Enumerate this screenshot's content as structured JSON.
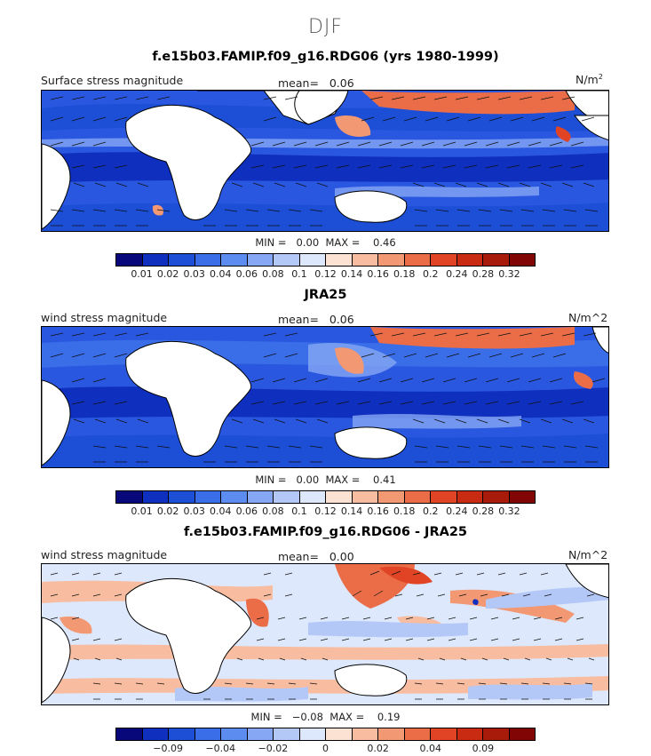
{
  "title": "DJF",
  "colors": {
    "scale": [
      "#08087a",
      "#0f2fbe",
      "#1c4ed6",
      "#3a6ee8",
      "#5d8cf0",
      "#86a8f4",
      "#b4c8f8",
      "#dde8fc",
      "#fce2d2",
      "#f8bda0",
      "#f29872",
      "#ea6d48",
      "#e04424",
      "#c82a12",
      "#a81a0a",
      "#820505"
    ],
    "land": "#ffffff"
  },
  "panels": [
    {
      "title": "f.e15b03.FAMIP.f09_g16.RDG06 (yrs 1980-1999)",
      "field": "Surface stress magnitude",
      "mean_label": "mean=",
      "mean_value": "0.06",
      "units_main": "N/m",
      "units_sup": "2",
      "min_label": "MIN =",
      "min_value": "0.00",
      "max_label": "MAX =",
      "max_value": "0.46",
      "ticks": [
        "0.01",
        "0.02",
        "0.03",
        "0.04",
        "0.06",
        "0.08",
        "0.1",
        "0.12",
        "0.14",
        "0.16",
        "0.18",
        "0.2",
        "0.24",
        "0.28",
        "0.32"
      ]
    },
    {
      "title": "JRA25",
      "field": "wind stress magnitude",
      "mean_label": "mean=",
      "mean_value": "0.06",
      "units_main": "N/m^2",
      "units_sup": "",
      "min_label": "MIN =",
      "min_value": "0.00",
      "max_label": "MAX =",
      "max_value": "0.41",
      "ticks": [
        "0.01",
        "0.02",
        "0.03",
        "0.04",
        "0.06",
        "0.08",
        "0.1",
        "0.12",
        "0.14",
        "0.16",
        "0.18",
        "0.2",
        "0.24",
        "0.28",
        "0.32"
      ]
    },
    {
      "title": "f.e15b03.FAMIP.f09_g16.RDG06 - JRA25",
      "field": "wind stress magnitude",
      "mean_label": "mean=",
      "mean_value": "0.00",
      "units_main": "N/m^2",
      "units_sup": "",
      "min_label": "MIN =",
      "min_value": "−0.08",
      "max_label": "MAX =",
      "max_value": "0.19",
      "ticks": [
        "−0.09",
        "−0.04",
        "−0.02",
        "0",
        "0.02",
        "0.04",
        "0.09"
      ]
    }
  ]
}
